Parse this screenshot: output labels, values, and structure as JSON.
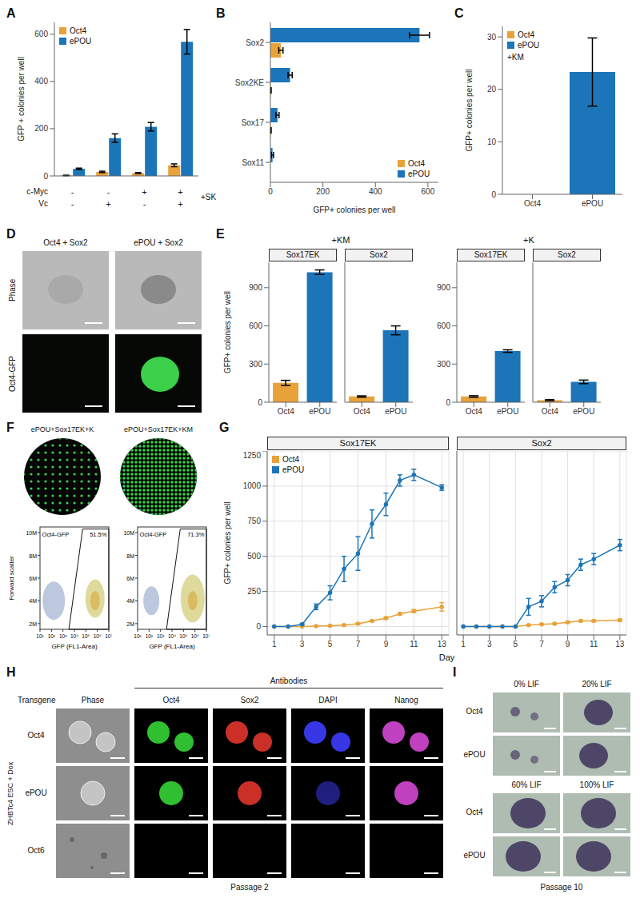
{
  "chart_data": [
    {
      "panel": "A",
      "type": "bar",
      "categories": [
        null,
        null,
        null,
        null
      ],
      "series": [
        {
          "name": "Oct4",
          "color": "#E8A23A",
          "values": [
            2,
            17,
            12,
            45
          ],
          "errors": [
            1,
            3,
            2,
            6
          ]
        },
        {
          "name": "ePOU",
          "color": "#1C75B8",
          "values": [
            30,
            160,
            208,
            568
          ],
          "errors": [
            3,
            18,
            18,
            52
          ]
        }
      ],
      "y_label": "GFP + colonies per well",
      "ylim": [
        0,
        650
      ],
      "yticks": [
        0,
        200,
        400,
        600
      ],
      "legend": "upper left",
      "tick_labels": "y",
      "conditions": [
        {
          "label": "c-Myc",
          "values": [
            "-",
            "-",
            "+",
            "+"
          ]
        },
        {
          "label": "Vc",
          "values": [
            "-",
            "+",
            "-",
            "+"
          ]
        }
      ],
      "annotation": "+SK"
    },
    {
      "panel": "B",
      "type": "bar",
      "orientation": "horizontal",
      "categories": [
        "Sox2",
        "Sox2KE",
        "Sox17",
        "Sox11"
      ],
      "series": [
        {
          "name": "Oct4",
          "color": "#E8A23A",
          "values": [
            40,
            2,
            2,
            0
          ],
          "errors": [
            8,
            1,
            1,
            0
          ]
        },
        {
          "name": "ePOU",
          "color": "#1C75B8",
          "values": [
            568,
            75,
            27,
            8
          ],
          "errors": [
            38,
            8,
            6,
            4
          ]
        }
      ],
      "x_label": "GFP+ colonies per well",
      "xlim": [
        0,
        640
      ],
      "xticks": [
        0,
        200,
        400,
        600
      ],
      "legend": "lower right"
    },
    {
      "panel": "C",
      "type": "bar",
      "categories": [
        "Oct4",
        "ePOU"
      ],
      "values": [
        0,
        23.3
      ],
      "errors": [
        0.4,
        6.5
      ],
      "colors": [
        "#E8A23A",
        "#1C75B8"
      ],
      "y_label": "GFP+ colonies per well",
      "ylim": [
        0,
        32
      ],
      "yticks": [
        0,
        10,
        20,
        30
      ],
      "legend": "upper left",
      "annotation": "+KM"
    },
    {
      "panel": "E",
      "type": "bar",
      "y_label": "GFP+ colonies per well",
      "ylim": [
        0,
        1100
      ],
      "yticks": [
        0,
        300,
        600,
        900
      ],
      "colors": [
        "#E8A23A",
        "#1C75B8"
      ],
      "facets": [
        {
          "group": "+KM",
          "title": "Sox17EK",
          "categories": [
            "Oct4",
            "ePOU"
          ],
          "values": [
            152,
            1022
          ],
          "errors": [
            20,
            18
          ]
        },
        {
          "group": "+KM",
          "title": "Sox2",
          "categories": [
            "Oct4",
            "ePOU"
          ],
          "values": [
            45,
            565
          ],
          "errors": [
            5,
            35
          ],
          "tick_labels": "x"
        },
        {
          "group": "+K",
          "title": "Sox17EK",
          "categories": [
            "Oct4",
            "ePOU"
          ],
          "values": [
            45,
            402
          ],
          "errors": [
            6,
            10
          ]
        },
        {
          "group": "+K",
          "title": "Sox2",
          "categories": [
            "Oct4",
            "ePOU"
          ],
          "values": [
            16,
            160
          ],
          "errors": [
            4,
            14
          ],
          "tick_labels": "x"
        }
      ]
    },
    {
      "panel": "G",
      "type": "line",
      "x_label": "Day",
      "y_label": "GFP+ colonies per well",
      "x": [
        1,
        2,
        3,
        4,
        5,
        6,
        7,
        8,
        9,
        10,
        11,
        13
      ],
      "xlim": [
        0.5,
        13.5
      ],
      "xticks": [
        1,
        3,
        5,
        7,
        9,
        11,
        13
      ],
      "ylim": [
        -60,
        1250
      ],
      "yticks": [
        0,
        250,
        500,
        750,
        1000,
        1250
      ],
      "grid": true,
      "legend": "upper left",
      "marker": "circle",
      "series": [
        {
          "name": "Oct4",
          "color": "#E8A23A"
        },
        {
          "name": "ePOU",
          "color": "#1C75B8"
        }
      ],
      "facets": [
        {
          "title": "Sox17EK",
          "values": [
            [
              0,
              0,
              0,
              2,
              5,
              10,
              20,
              40,
              60,
              90,
              110,
              140
            ],
            [
              0,
              0,
              15,
              140,
              240,
              410,
              520,
              730,
              870,
              1040,
              1080,
              990
            ]
          ],
          "errors": [
            [
              0,
              0,
              0,
              1,
              2,
              3,
              5,
              5,
              8,
              8,
              10,
              30
            ],
            [
              0,
              0,
              5,
              20,
              50,
              90,
              120,
              100,
              80,
              40,
              40,
              20
            ]
          ]
        },
        {
          "title": "Sox2",
          "values": [
            [
              0,
              0,
              0,
              0,
              0,
              10,
              15,
              20,
              30,
              40,
              40,
              45
            ],
            [
              0,
              0,
              0,
              0,
              0,
              140,
              180,
              280,
              330,
              440,
              480,
              580
            ]
          ],
          "errors": [
            [
              0,
              0,
              0,
              0,
              0,
              3,
              4,
              5,
              5,
              6,
              6,
              8
            ],
            [
              0,
              0,
              0,
              0,
              0,
              60,
              40,
              40,
              40,
              40,
              40,
              40
            ]
          ],
          "tick_labels": "x"
        }
      ]
    }
  ],
  "figure": {
    "D": {
      "panel": "D",
      "columns": [
        "Oct4 + Sox2",
        "ePOU + Sox2"
      ],
      "rows": [
        "Phase",
        "Oct4-GFP"
      ]
    },
    "F": {
      "panel": "F",
      "wells": [
        "ePOU+Sox17EK+K",
        "ePOU+Sox17EK+KM"
      ],
      "flow": {
        "type": "scatter",
        "gate_label": "Oct4-GFP",
        "gate_values": [
          "51.5%",
          "71.3%"
        ],
        "y_label": "Forward scatter",
        "x_label": "GFP (FL1-Area)",
        "log": "x",
        "xlim": [
          10,
          10000000
        ],
        "xticks": [
          {
            "value": 10,
            "label": "10¹"
          },
          {
            "value": 100,
            "label": "10²"
          },
          {
            "value": 1000,
            "label": "10³"
          },
          {
            "value": 10000,
            "label": "10⁴"
          },
          {
            "value": 100000,
            "label": "10⁵"
          },
          {
            "value": 1000000,
            "label": "10⁶"
          },
          {
            "value": 10000000,
            "label": "10⁷"
          }
        ],
        "ylim": [
          1500000,
          10500000
        ],
        "yticks": [
          {
            "value": 2000000,
            "label": "2M"
          },
          {
            "value": 4000000,
            "label": "4M"
          },
          {
            "value": 6000000,
            "label": "6M"
          },
          {
            "value": 8000000,
            "label": "8M"
          },
          {
            "value": 10000000,
            "label": "10M"
          }
        ]
      }
    },
    "H": {
      "panel": "H",
      "header": "Transgene",
      "phase_label": "Phase",
      "group_label": "Antibodies",
      "stains": [
        {
          "name": "Oct4",
          "color": "#35d435"
        },
        {
          "name": "Sox2",
          "color": "#e0352c"
        },
        {
          "name": "DAPI",
          "color": "#3d3dff"
        },
        {
          "name": "Nanog",
          "color": "#d548d5"
        }
      ],
      "rows": [
        "Oct4",
        "ePOU",
        "Oct6"
      ],
      "side_label": "ZHBTc4 ESC + Dox",
      "caption": "Passage 2"
    },
    "I": {
      "panel": "I",
      "columns": [
        "0% LIF",
        "20% LIF",
        "60% LIF",
        "100% LIF"
      ],
      "rows": [
        "Oct4",
        "ePOU"
      ],
      "caption": "Passage 10"
    }
  }
}
